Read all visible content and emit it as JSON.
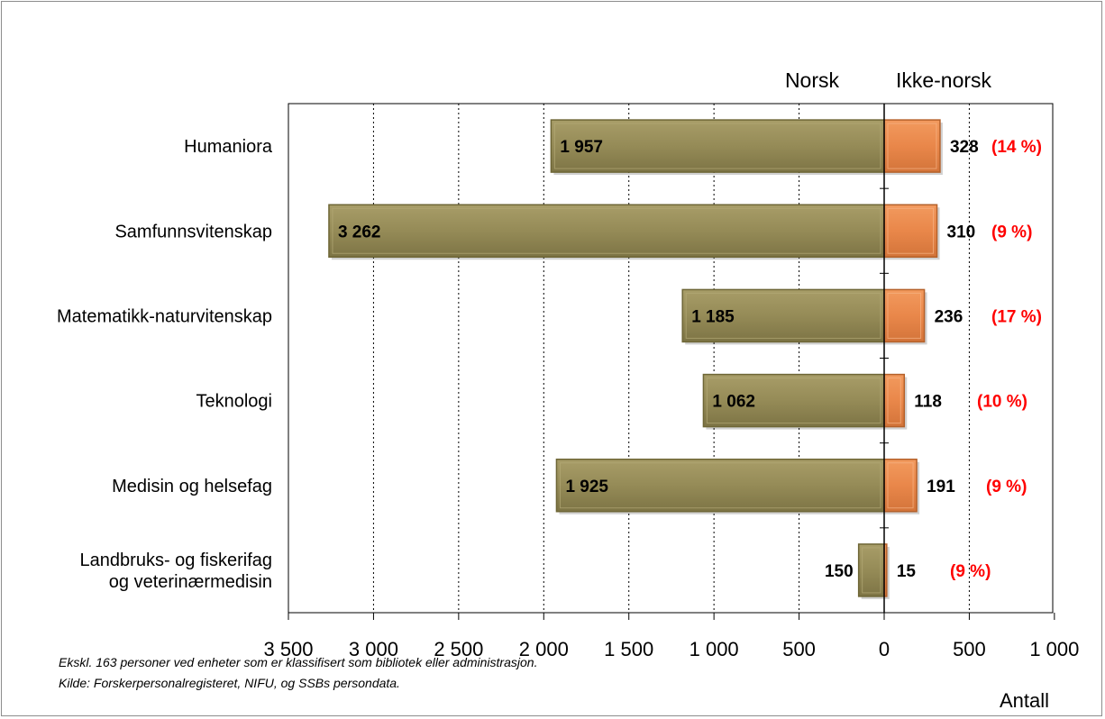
{
  "colors": {
    "norsk": "#958b57",
    "norsk_edge": "#6e6636",
    "ikke": "#e9874a",
    "ikke_edge": "#b5612a",
    "pct": "#ff0000",
    "grid": "#000000"
  },
  "chart_data": {
    "type": "bar",
    "orientation": "horizontal",
    "categories": [
      [
        "Humaniora"
      ],
      [
        "Samfunnsvitenskap"
      ],
      [
        "Matematikk-naturvitenskap"
      ],
      [
        "Teknologi"
      ],
      [
        "Medisin og helsefag"
      ],
      [
        "Landbruks- og fiskerifag",
        "og veterinærmedisin"
      ]
    ],
    "series": [
      {
        "name": "Norsk",
        "values": [
          1957,
          3262,
          1185,
          1062,
          1925,
          150
        ],
        "labels": [
          "1 957",
          "3 262",
          "1 185",
          "1 062",
          "1 925",
          "150"
        ]
      },
      {
        "name": "Ikke-norsk",
        "values": [
          328,
          310,
          236,
          118,
          191,
          15
        ],
        "labels": [
          "328",
          "310",
          "236",
          "118",
          "191",
          "15"
        ]
      }
    ],
    "percent_labels": [
      "(14 %)",
      "(9 %)",
      "(17 %)",
      "(10 %)",
      "(9 %)",
      "(9 %)"
    ],
    "left_axis": {
      "range": [
        0,
        3500
      ],
      "ticks": [
        3500,
        3000,
        2500,
        2000,
        1500,
        1000,
        500,
        0
      ],
      "tick_labels": [
        "3 500",
        "3 000",
        "2 500",
        "2 000",
        "1 500",
        "1 000",
        "500",
        "0"
      ]
    },
    "right_axis": {
      "range": [
        0,
        1000
      ],
      "ticks": [
        500,
        1000
      ],
      "tick_labels": [
        "500",
        "1 000"
      ]
    },
    "xlabel": "Antall",
    "grid": "vertical dotted",
    "notes": [
      "Ekskl. 163 personer ved enheter som er klassifisert som bibliotek eller administrasjon.",
      "Kilde: Forskerpersonalregisteret, NIFU, og SSBs persondata."
    ]
  }
}
